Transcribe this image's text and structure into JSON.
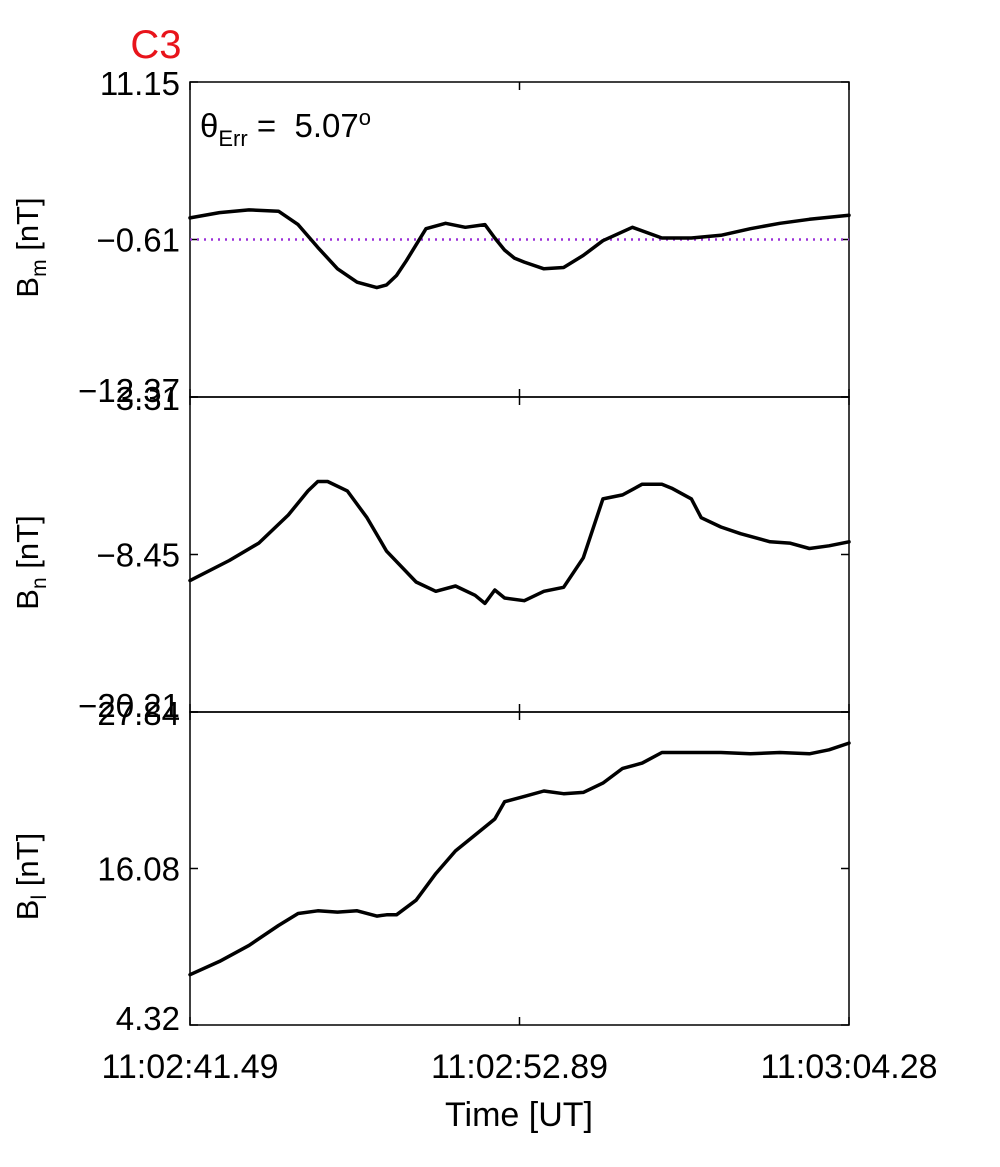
{
  "chart_data": {
    "type": "line",
    "title": "C3",
    "title_color": "#e8141b",
    "annotation": {
      "symbol": "θ",
      "subscript": "Err",
      "equals": " =  ",
      "value": "5.07",
      "superscript": "o"
    },
    "xlabel": "Time [UT]",
    "x_ticks": [
      "11:02:41.49",
      "11:02:52.89",
      "11:03:04.28"
    ],
    "xlim": [
      0,
      22.79
    ],
    "line_color": "#000000",
    "panels": [
      {
        "id": "bm",
        "ylabel": "B",
        "ylabel_sub": "m",
        "ylabel_unit": " [nT]",
        "yticks": [
          "11.15",
          "-0.61",
          "-12.37"
        ],
        "ylim": [
          -12.37,
          11.15
        ],
        "reference_line": {
          "value": -0.61,
          "color": "#9b30d9",
          "style": "dotted"
        },
        "x": [
          0,
          1.02,
          2.04,
          3.06,
          3.74,
          4.42,
          5.1,
          5.78,
          6.46,
          6.8,
          7.14,
          7.48,
          8.16,
          8.84,
          9.52,
          10.2,
          10.54,
          10.88,
          11.22,
          11.56,
          12.24,
          12.92,
          13.6,
          14.28,
          15.3,
          16.32,
          17.34,
          18.36,
          19.38,
          20.4,
          21.42,
          22.79
        ],
        "y": [
          1.0,
          1.4,
          1.6,
          1.5,
          0.5,
          -1.2,
          -2.8,
          -3.8,
          -4.2,
          -4.0,
          -3.3,
          -2.2,
          0.2,
          0.6,
          0.3,
          0.5,
          -0.5,
          -1.4,
          -2.0,
          -2.3,
          -2.8,
          -2.7,
          -1.8,
          -0.7,
          0.3,
          -0.5,
          -0.5,
          -0.3,
          0.2,
          0.6,
          0.9,
          1.2
        ]
      },
      {
        "id": "bn",
        "ylabel": "B",
        "ylabel_sub": "n",
        "ylabel_unit": " [nT]",
        "yticks": [
          "3.31",
          "-8.45",
          "-20.21"
        ],
        "ylim": [
          -20.21,
          3.31
        ],
        "x": [
          0,
          1.36,
          2.38,
          3.4,
          4.08,
          4.42,
          4.76,
          5.44,
          6.12,
          6.8,
          7.82,
          8.5,
          9.18,
          9.86,
          10.2,
          10.54,
          10.88,
          11.56,
          12.24,
          12.92,
          13.6,
          14.28,
          14.96,
          15.64,
          16.32,
          16.66,
          17.34,
          17.68,
          18.36,
          19.04,
          20.06,
          20.74,
          21.42,
          22.1,
          22.79
        ],
        "y": [
          -10.4,
          -8.9,
          -7.6,
          -5.5,
          -3.7,
          -3.0,
          -3.0,
          -3.7,
          -5.7,
          -8.2,
          -10.5,
          -11.2,
          -10.8,
          -11.5,
          -12.1,
          -11.1,
          -11.7,
          -11.9,
          -11.2,
          -10.9,
          -8.7,
          -4.3,
          -4.0,
          -3.2,
          -3.2,
          -3.5,
          -4.3,
          -5.7,
          -6.4,
          -6.9,
          -7.5,
          -7.6,
          -8.0,
          -7.8,
          -7.5
        ]
      },
      {
        "id": "bl",
        "ylabel": "B",
        "ylabel_sub": "l",
        "ylabel_unit": " [nT]",
        "yticks": [
          "27.84",
          "16.08",
          "4.32"
        ],
        "ylim": [
          4.32,
          27.84
        ],
        "x": [
          0,
          1.02,
          2.04,
          3.06,
          3.74,
          4.42,
          5.1,
          5.78,
          6.46,
          6.8,
          7.14,
          7.82,
          8.5,
          9.18,
          9.86,
          10.54,
          10.88,
          11.56,
          12.24,
          12.92,
          13.6,
          14.28,
          14.96,
          15.64,
          16.32,
          17.34,
          18.36,
          19.38,
          20.4,
          21.42,
          22.1,
          22.79
        ],
        "y": [
          8.1,
          9.1,
          10.3,
          11.8,
          12.7,
          12.9,
          12.8,
          12.9,
          12.5,
          12.6,
          12.6,
          13.7,
          15.7,
          17.4,
          18.6,
          19.8,
          21.1,
          21.5,
          21.9,
          21.7,
          21.8,
          22.5,
          23.6,
          24.0,
          24.8,
          24.8,
          24.8,
          24.7,
          24.8,
          24.7,
          25.0,
          25.5
        ]
      }
    ]
  }
}
